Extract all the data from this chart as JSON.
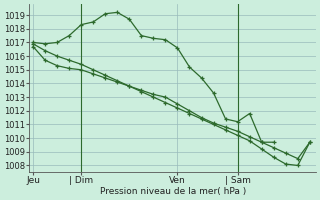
{
  "bg_color": "#cceedd",
  "grid_color": "#99bbbb",
  "line_color": "#2d6a2d",
  "ylabel": "Pression niveau de la mer( hPa )",
  "ylim": [
    1007.5,
    1019.8
  ],
  "yticks": [
    1008,
    1009,
    1010,
    1011,
    1012,
    1013,
    1014,
    1015,
    1016,
    1017,
    1018,
    1019
  ],
  "xtick_labels": [
    "Jeu",
    "| Dim",
    "Ven",
    "| Sam"
  ],
  "xtick_positions": [
    0,
    4,
    12,
    17
  ],
  "vline_x": [
    4,
    17
  ],
  "xlim": [
    -0.3,
    23.5
  ],
  "series1_x": [
    0,
    1,
    2,
    3,
    4,
    5,
    6,
    7,
    8,
    9,
    10,
    11,
    12,
    13,
    14,
    15,
    16,
    17,
    18,
    19,
    20
  ],
  "series1_y": [
    1017.0,
    1016.9,
    1017.0,
    1017.5,
    1018.3,
    1018.5,
    1019.1,
    1019.2,
    1018.7,
    1017.5,
    1017.3,
    1017.2,
    1016.6,
    1015.2,
    1014.4,
    1013.3,
    1011.4,
    1011.2,
    1011.8,
    1009.7,
    1009.7
  ],
  "series2_x": [
    0,
    1,
    2,
    3,
    4,
    5,
    6,
    7,
    8,
    9,
    10,
    11,
    12,
    13,
    14,
    15,
    16,
    17,
    18,
    19,
    20,
    21,
    22,
    23
  ],
  "series2_y": [
    1016.7,
    1015.7,
    1015.3,
    1015.1,
    1015.0,
    1014.7,
    1014.4,
    1014.1,
    1013.8,
    1013.5,
    1013.2,
    1013.0,
    1012.5,
    1012.0,
    1011.5,
    1011.1,
    1010.8,
    1010.5,
    1010.1,
    1009.7,
    1009.3,
    1008.9,
    1008.5,
    1009.7
  ],
  "series3_x": [
    0,
    1,
    2,
    3,
    4,
    5,
    6,
    7,
    8,
    9,
    10,
    11,
    12,
    13,
    14,
    15,
    16,
    17,
    18,
    19,
    20,
    21,
    22,
    23
  ],
  "series3_y": [
    1016.9,
    1016.4,
    1016.0,
    1015.7,
    1015.4,
    1015.0,
    1014.6,
    1014.2,
    1013.8,
    1013.4,
    1013.0,
    1012.6,
    1012.2,
    1011.8,
    1011.4,
    1011.0,
    1010.6,
    1010.2,
    1009.8,
    1009.2,
    1008.6,
    1008.1,
    1008.0,
    1009.7
  ]
}
